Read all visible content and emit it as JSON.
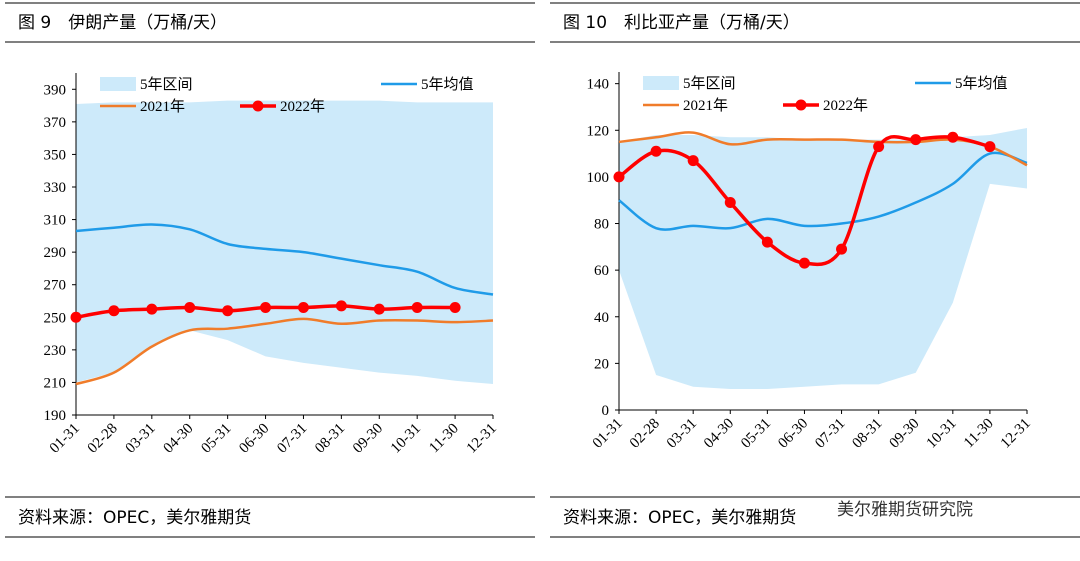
{
  "chart_data": [
    {
      "type": "line",
      "title": "图 9　伊朗产量（万桶/天）",
      "source": "资料来源：OPEC，美尔雅期货",
      "categories": [
        "01-31",
        "02-28",
        "03-31",
        "04-30",
        "05-31",
        "06-30",
        "07-31",
        "08-31",
        "09-30",
        "10-31",
        "11-30",
        "12-31"
      ],
      "ylim": [
        190,
        400
      ],
      "yticks": [
        190,
        210,
        230,
        250,
        270,
        290,
        310,
        330,
        350,
        370,
        390
      ],
      "band": {
        "name": "5年区间",
        "color": "#cdeafa",
        "low": [
          210,
          216,
          232,
          242,
          236,
          226,
          222,
          219,
          216,
          214,
          211,
          209
        ],
        "high": [
          381,
          382,
          382,
          382,
          383,
          383,
          383,
          383,
          383,
          382,
          382,
          382
        ]
      },
      "series": [
        {
          "name": "5年均值",
          "color": "#1f9be8",
          "values": [
            303,
            305,
            307,
            304,
            295,
            292,
            290,
            286,
            282,
            278,
            268,
            264
          ]
        },
        {
          "name": "2021年",
          "color": "#f07c2a",
          "values": [
            209,
            216,
            232,
            242,
            243,
            246,
            249,
            246,
            248,
            248,
            247,
            248
          ]
        },
        {
          "name": "2022年",
          "color": "#ff0000",
          "marker": true,
          "values": [
            250,
            254,
            255,
            256,
            254,
            256,
            256,
            257,
            255,
            256,
            256,
            null
          ]
        }
      ]
    },
    {
      "type": "line",
      "title": "图 10　利比亚产量（万桶/天）",
      "source": "资料来源：OPEC，美尔雅期货",
      "watermark": "美尔雅期货研究院",
      "categories": [
        "01-31",
        "02-28",
        "03-31",
        "04-30",
        "05-31",
        "06-30",
        "07-31",
        "08-31",
        "09-30",
        "10-31",
        "11-30",
        "12-31"
      ],
      "ylim": [
        0,
        145
      ],
      "yticks": [
        0,
        20,
        40,
        60,
        80,
        100,
        120,
        140
      ],
      "band": {
        "name": "5年区间",
        "color": "#cdeafa",
        "low": [
          60,
          15,
          10,
          9,
          9,
          10,
          11,
          11,
          16,
          46,
          97,
          95
        ],
        "high": [
          115,
          118,
          118,
          117,
          117,
          116,
          116,
          116,
          116,
          117,
          118,
          121
        ]
      },
      "series": [
        {
          "name": "5年均值",
          "color": "#1f9be8",
          "values": [
            90,
            78,
            79,
            78,
            82,
            79,
            80,
            83,
            89,
            97,
            110,
            106
          ]
        },
        {
          "name": "2021年",
          "color": "#f07c2a",
          "values": [
            115,
            117,
            119,
            114,
            116,
            116,
            116,
            115,
            115,
            116,
            113,
            105
          ]
        },
        {
          "name": "2022年",
          "color": "#ff0000",
          "marker": true,
          "values": [
            100,
            111,
            107,
            89,
            72,
            63,
            69,
            113,
            116,
            117,
            113,
            null
          ]
        }
      ]
    }
  ]
}
